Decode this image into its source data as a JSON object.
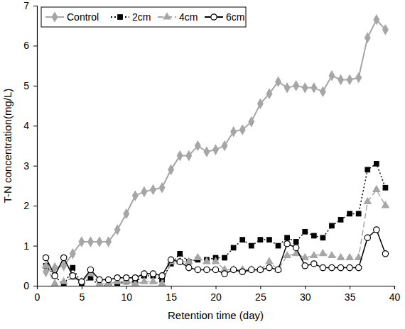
{
  "chart_data": {
    "type": "line",
    "x_label": "Retention time (day)",
    "y_label": "T-N concentration(mg/L)",
    "x": [
      1,
      2,
      3,
      4,
      5,
      6,
      7,
      8,
      9,
      10,
      11,
      12,
      13,
      14,
      15,
      16,
      17,
      18,
      19,
      20,
      21,
      22,
      23,
      24,
      25,
      26,
      27,
      28,
      29,
      30,
      31,
      32,
      33,
      34,
      35,
      36,
      37,
      38,
      39
    ],
    "series": [
      {
        "name": "Control",
        "color": "#a6a6a6",
        "marker": "diamond",
        "line_style": "solid",
        "values": [
          0.35,
          0.45,
          0.5,
          0.8,
          1.1,
          1.1,
          1.1,
          1.1,
          1.4,
          1.8,
          2.25,
          2.35,
          2.4,
          2.45,
          2.9,
          3.25,
          3.25,
          3.5,
          3.35,
          3.4,
          3.5,
          3.85,
          3.9,
          4.1,
          4.55,
          4.8,
          5.1,
          4.95,
          5.0,
          4.95,
          4.95,
          4.85,
          5.25,
          5.15,
          5.15,
          5.2,
          6.2,
          6.65,
          6.4
        ]
      },
      {
        "name": "2cm",
        "color": "#000000",
        "marker": "square",
        "line_style": "dotted",
        "values": [
          0.5,
          0.25,
          0.0,
          0.45,
          0.05,
          0.2,
          0.0,
          0.0,
          0.05,
          0.1,
          0.1,
          0.25,
          0.25,
          0.15,
          0.55,
          0.8,
          0.6,
          0.65,
          0.65,
          0.7,
          0.7,
          0.95,
          1.15,
          1.0,
          1.15,
          1.15,
          1.0,
          1.2,
          1.1,
          1.35,
          1.25,
          1.2,
          1.5,
          1.65,
          1.8,
          1.8,
          2.9,
          3.05,
          2.45
        ]
      },
      {
        "name": "4cm",
        "color": "#a6a6a6",
        "marker": "triangle",
        "line_style": "dashed",
        "values": [
          0.5,
          0.05,
          0.1,
          0.2,
          0.1,
          0.3,
          0.05,
          0.05,
          0.1,
          0.1,
          0.05,
          0.1,
          0.1,
          0.05,
          0.6,
          0.6,
          0.6,
          0.7,
          0.6,
          0.6,
          0.4,
          0.4,
          0.4,
          0.4,
          0.4,
          0.6,
          0.4,
          0.75,
          0.8,
          0.7,
          0.75,
          0.8,
          0.75,
          0.7,
          0.7,
          0.7,
          2.1,
          2.4,
          2.0
        ]
      },
      {
        "name": "6cm",
        "color": "#000000",
        "marker": "open-circle",
        "line_style": "solid",
        "values": [
          0.7,
          0.25,
          0.7,
          0.25,
          0.1,
          0.4,
          0.15,
          0.15,
          0.2,
          0.2,
          0.2,
          0.3,
          0.3,
          0.25,
          0.65,
          0.6,
          0.45,
          0.4,
          0.4,
          0.4,
          0.3,
          0.4,
          0.35,
          0.4,
          0.4,
          0.45,
          0.4,
          1.05,
          0.95,
          0.5,
          0.55,
          0.45,
          0.45,
          0.45,
          0.45,
          0.45,
          1.2,
          1.4,
          0.8
        ]
      }
    ],
    "xlim": [
      0,
      40
    ],
    "xticks": [
      0,
      5,
      10,
      15,
      20,
      25,
      30,
      35,
      40
    ],
    "ylim": [
      0,
      7
    ],
    "yticks": [
      0,
      1,
      2,
      3,
      4,
      5,
      6,
      7
    ],
    "grid": false,
    "legend": "upper left"
  }
}
